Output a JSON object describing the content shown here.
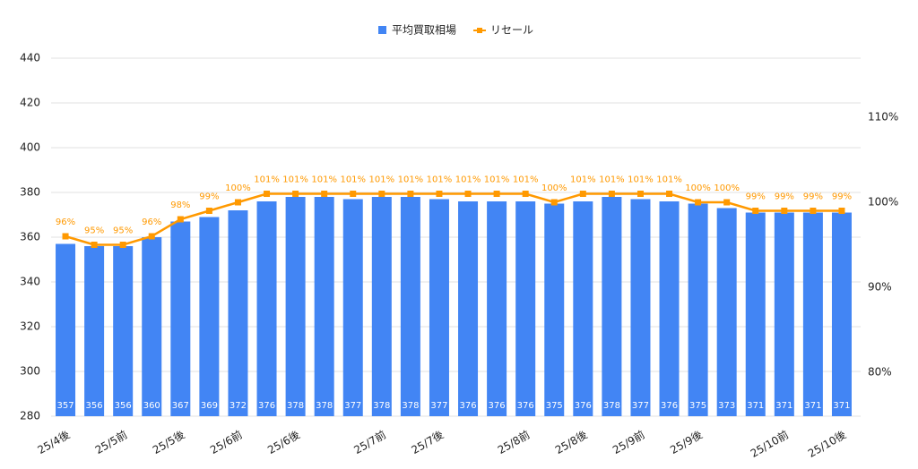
{
  "chart_data": {
    "type": "combo",
    "categories": [
      "25/4後",
      null,
      "25/5前",
      null,
      "25/5後",
      null,
      "25/6前",
      null,
      "25/6後",
      null,
      null,
      "25/7前",
      null,
      "25/7後",
      null,
      null,
      "25/8前",
      null,
      "25/8後",
      null,
      "25/9前",
      null,
      "25/9後",
      null,
      null,
      "25/10前",
      null,
      "25/10後"
    ],
    "series": [
      {
        "name": "平均買取相場",
        "type": "bar",
        "color": "#4285f4",
        "values": [
          357,
          356,
          356,
          360,
          367,
          369,
          372,
          376,
          378,
          378,
          377,
          378,
          378,
          377,
          376,
          376,
          376,
          375,
          376,
          378,
          377,
          376,
          375,
          373,
          371,
          371,
          371,
          371
        ]
      },
      {
        "name": "リセール",
        "type": "line",
        "axis": "y2",
        "color": "#ff9900",
        "values": [
          96,
          95,
          95,
          96,
          98,
          99,
          100,
          101,
          101,
          101,
          101,
          101,
          101,
          101,
          101,
          101,
          101,
          100,
          101,
          101,
          101,
          101,
          100,
          100,
          99,
          99,
          99,
          99
        ],
        "value_labels": [
          "96%",
          "95%",
          "95%",
          "96%",
          "98%",
          "99%",
          "100%",
          "101%",
          "101%",
          "101%",
          "101%",
          "101%",
          "101%",
          "101%",
          "101%",
          "101%",
          "101%",
          "100%",
          "101%",
          "101%",
          "101%",
          "101%",
          "100%",
          "100%",
          "99%",
          "99%",
          "99%",
          "99%"
        ]
      }
    ],
    "ylim": [
      280,
      440
    ],
    "yticks": [
      280,
      300,
      320,
      340,
      360,
      380,
      400,
      420,
      440
    ],
    "y2lim": [
      74.84,
      116.95
    ],
    "y2ticks": [
      {
        "value": 80,
        "label": "80%"
      },
      {
        "value": 90,
        "label": "90%"
      },
      {
        "value": 100,
        "label": "100%"
      },
      {
        "value": 110,
        "label": "110%"
      }
    ],
    "grid": true,
    "legend": "top"
  }
}
